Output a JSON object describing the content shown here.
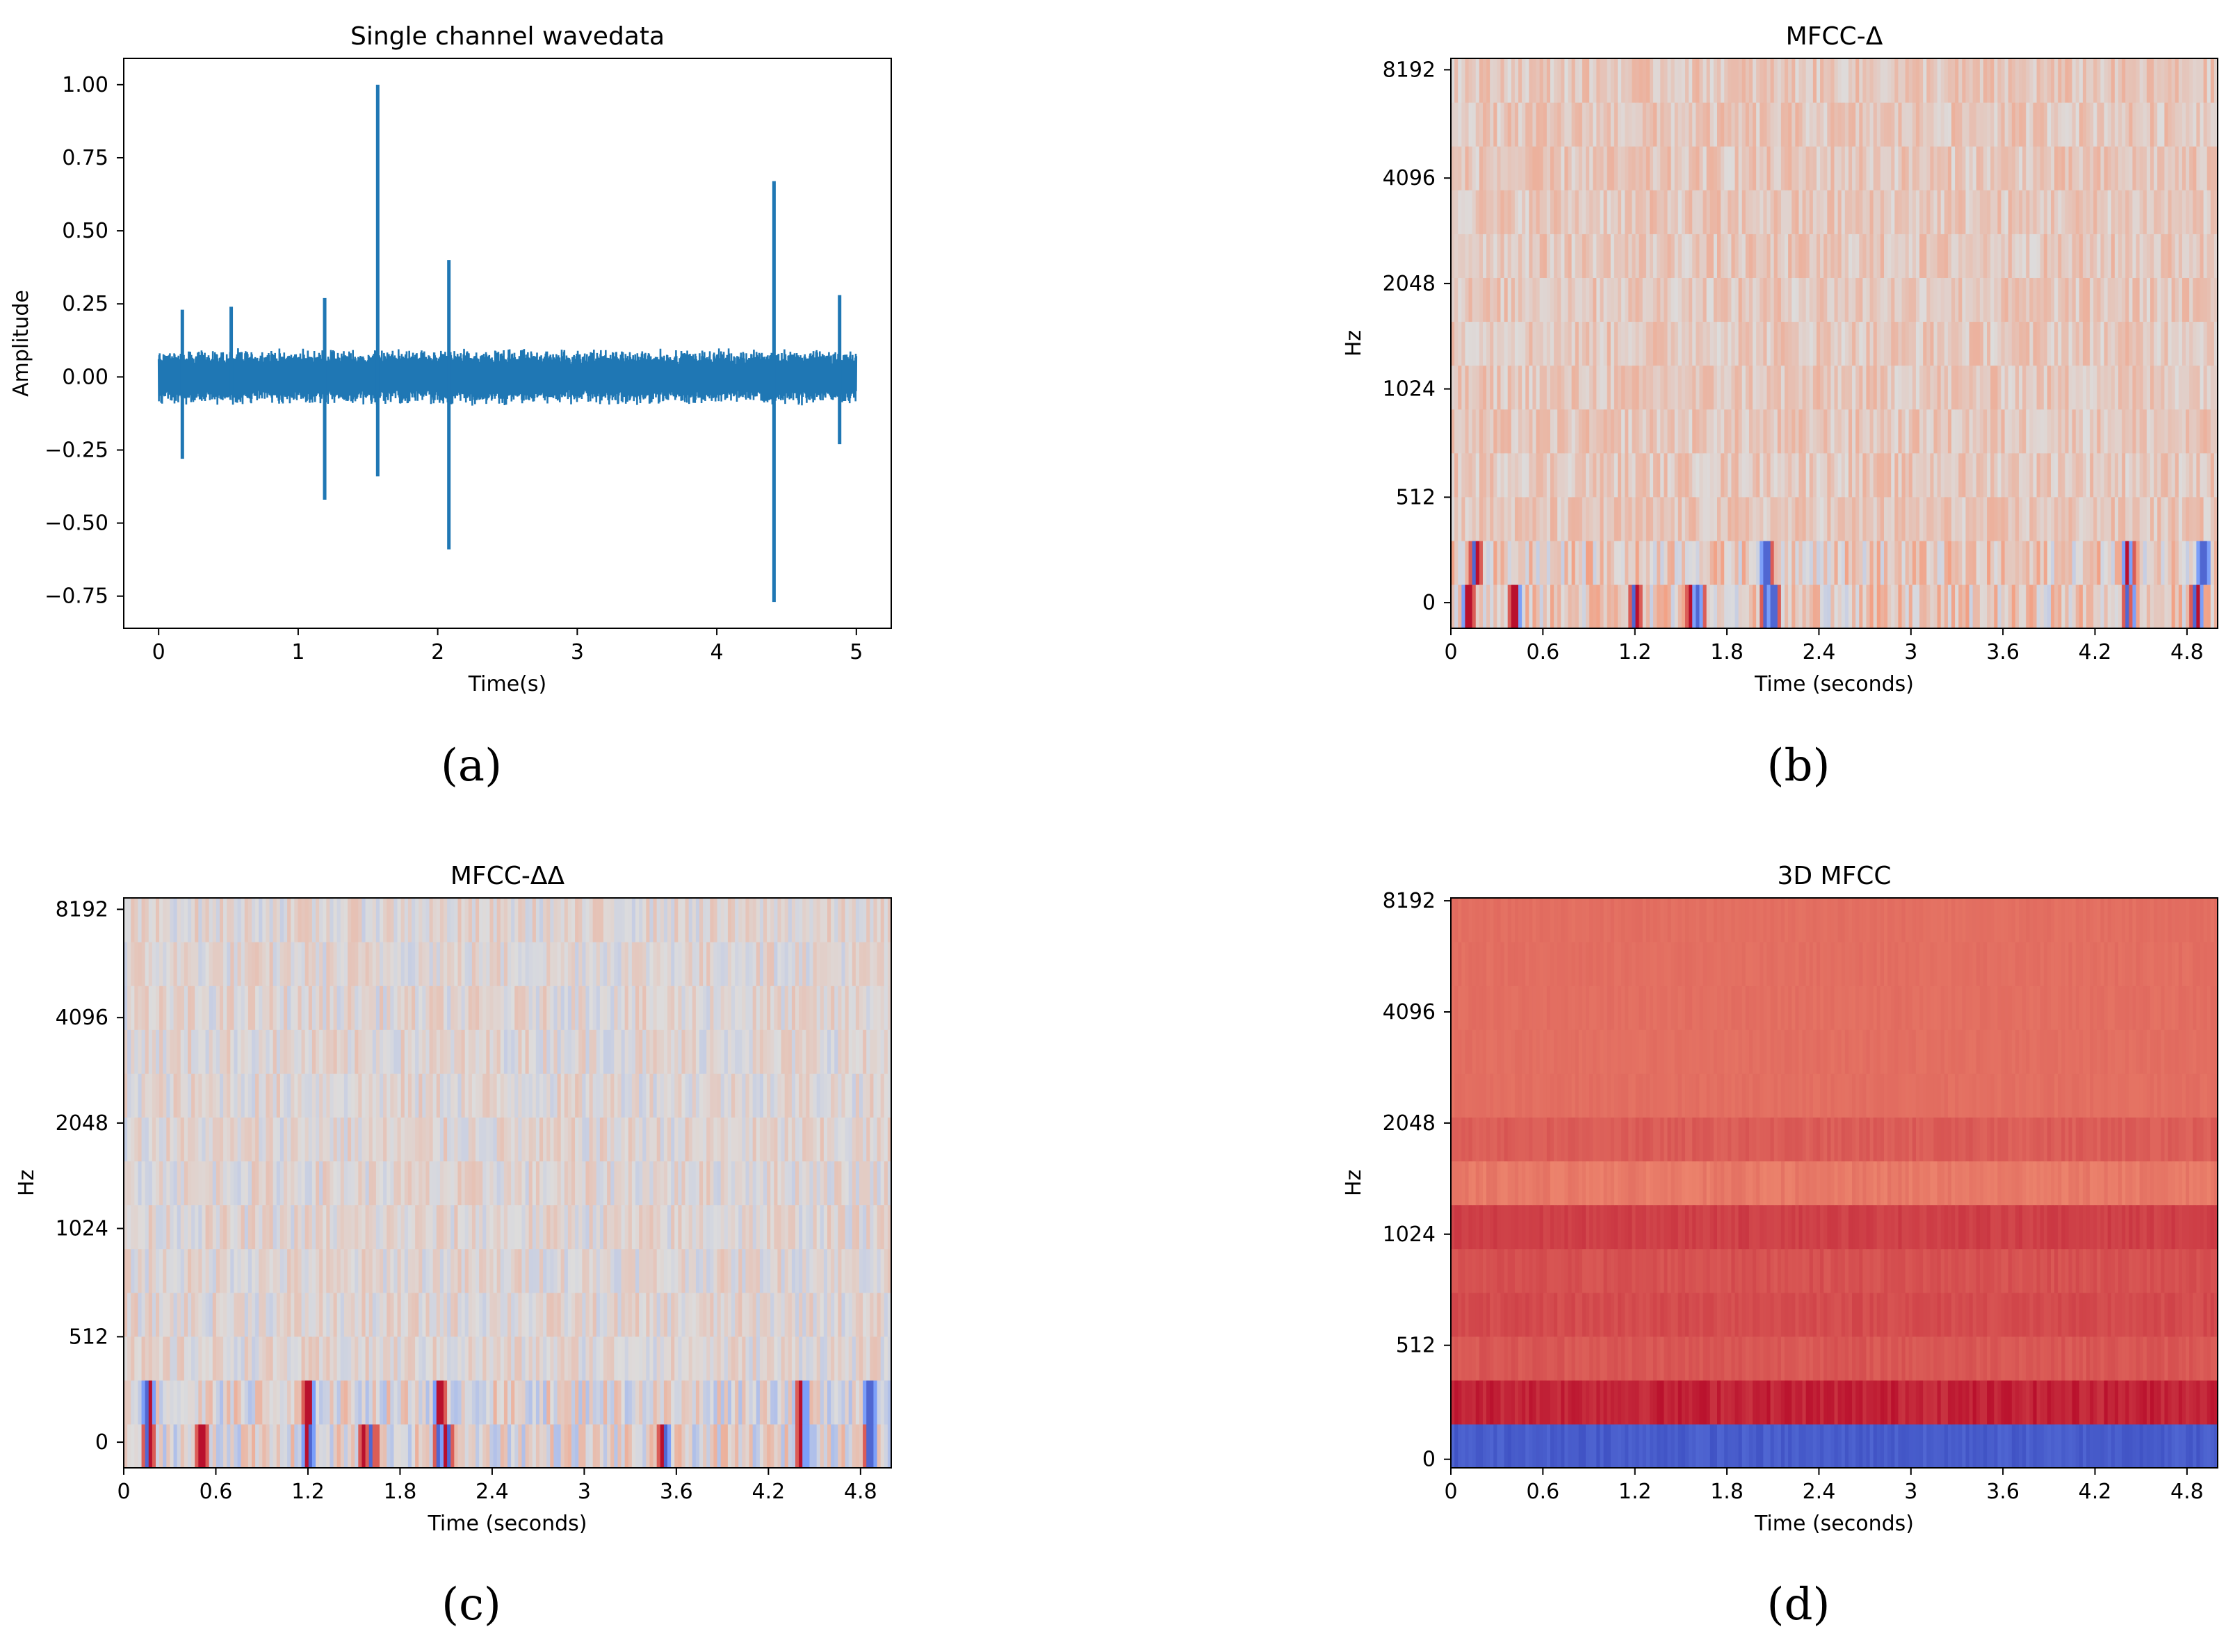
{
  "chart_data": [
    {
      "type": "line",
      "panel_label": "(a)",
      "title": "Single channel wavedata",
      "xlabel": "Time(s)",
      "ylabel": "Amplitude",
      "xlim": [
        -0.25,
        5.25
      ],
      "ylim": [
        -0.86,
        1.09
      ],
      "xticks": [
        0,
        1,
        2,
        3,
        4,
        5
      ],
      "xtick_labels": [
        "0",
        "1",
        "2",
        "3",
        "4",
        "5"
      ],
      "yticks": [
        1.0,
        0.75,
        0.5,
        0.25,
        0.0,
        -0.25,
        -0.5,
        -0.75
      ],
      "ytick_labels": [
        "1.00",
        "0.75",
        "0.50",
        "0.25",
        "0.00",
        "−0.25",
        "−0.50",
        "−0.75"
      ],
      "series": [
        {
          "color": "#1f77b4",
          "noise_envelope": {
            "x_range": [
              0,
              5
            ],
            "upper": 0.1,
            "lower": -0.1
          },
          "spikes": [
            {
              "x": 0.17,
              "max": 0.23,
              "min": -0.28
            },
            {
              "x": 0.52,
              "max": 0.24,
              "min": -0.06
            },
            {
              "x": 1.19,
              "max": 0.27,
              "min": -0.42
            },
            {
              "x": 1.57,
              "max": 1.0,
              "min": -0.34
            },
            {
              "x": 2.08,
              "max": 0.4,
              "min": -0.59
            },
            {
              "x": 4.41,
              "max": 0.67,
              "min": -0.77
            },
            {
              "x": 4.88,
              "max": 0.28,
              "min": -0.23
            }
          ]
        }
      ]
    },
    {
      "type": "heatmap",
      "panel_label": "(b)",
      "title": "MFCC-Δ",
      "xlabel": "Time (seconds)",
      "ylabel": "Hz",
      "xlim": [
        0,
        5.0
      ],
      "x_ticks": [
        0,
        0.6,
        1.2,
        1.8,
        2.4,
        3.0,
        3.6,
        4.2,
        4.8
      ],
      "xtick_labels": [
        "0",
        "0.6",
        "1.2",
        "1.8",
        "2.4",
        "3",
        "3.6",
        "4.2",
        "4.8"
      ],
      "ytick_labels": [
        "8192",
        "4096",
        "2048",
        "1024",
        "512",
        "0"
      ],
      "colormap": "coolwarm",
      "base_level": 0.58,
      "strong_events_low_band": [
        0.1,
        0.4,
        1.2,
        1.55,
        1.6,
        2.05,
        2.1,
        4.4,
        4.85
      ],
      "strong_events_second_band": [
        0.15,
        2.05,
        4.4,
        4.9
      ]
    },
    {
      "type": "heatmap",
      "panel_label": "(c)",
      "title": "MFCC-ΔΔ",
      "xlabel": "Time (seconds)",
      "ylabel": "Hz",
      "xlim": [
        0,
        5.0
      ],
      "x_ticks": [
        0,
        0.6,
        1.2,
        1.8,
        2.4,
        3.0,
        3.6,
        4.2,
        4.8
      ],
      "xtick_labels": [
        "0",
        "0.6",
        "1.2",
        "1.8",
        "2.4",
        "3",
        "3.6",
        "4.2",
        "4.8"
      ],
      "ytick_labels": [
        "8192",
        "4096",
        "2048",
        "1024",
        "512",
        "0"
      ],
      "colormap": "coolwarm",
      "base_level": 0.52,
      "strong_events_low_band": [
        0.15,
        0.5,
        1.2,
        1.55,
        1.6,
        2.05,
        2.1,
        3.5,
        4.4,
        4.85
      ],
      "strong_events_second_band": [
        0.15,
        1.2,
        2.05,
        4.4,
        4.85
      ]
    },
    {
      "type": "heatmap",
      "panel_label": "(d)",
      "title": "3D MFCC",
      "xlabel": "Time (seconds)",
      "ylabel": "Hz",
      "xlim": [
        0,
        5.0
      ],
      "x_ticks": [
        0,
        0.6,
        1.2,
        1.8,
        2.4,
        3.0,
        3.6,
        4.2,
        4.8
      ],
      "xtick_labels": [
        "0",
        "0.6",
        "1.2",
        "1.8",
        "2.4",
        "3",
        "3.6",
        "4.2",
        "4.8"
      ],
      "ytick_labels": [
        "8192",
        "4096",
        "2048",
        "1024",
        "512",
        "0"
      ],
      "colormap": "coolwarm",
      "base_level": 0.82,
      "band_levels_bottom_up": [
        0.05,
        0.95,
        0.86,
        0.88,
        0.87,
        0.9,
        0.8,
        0.85,
        0.79,
        0.83,
        0.87,
        0.84,
        0.82
      ]
    }
  ]
}
